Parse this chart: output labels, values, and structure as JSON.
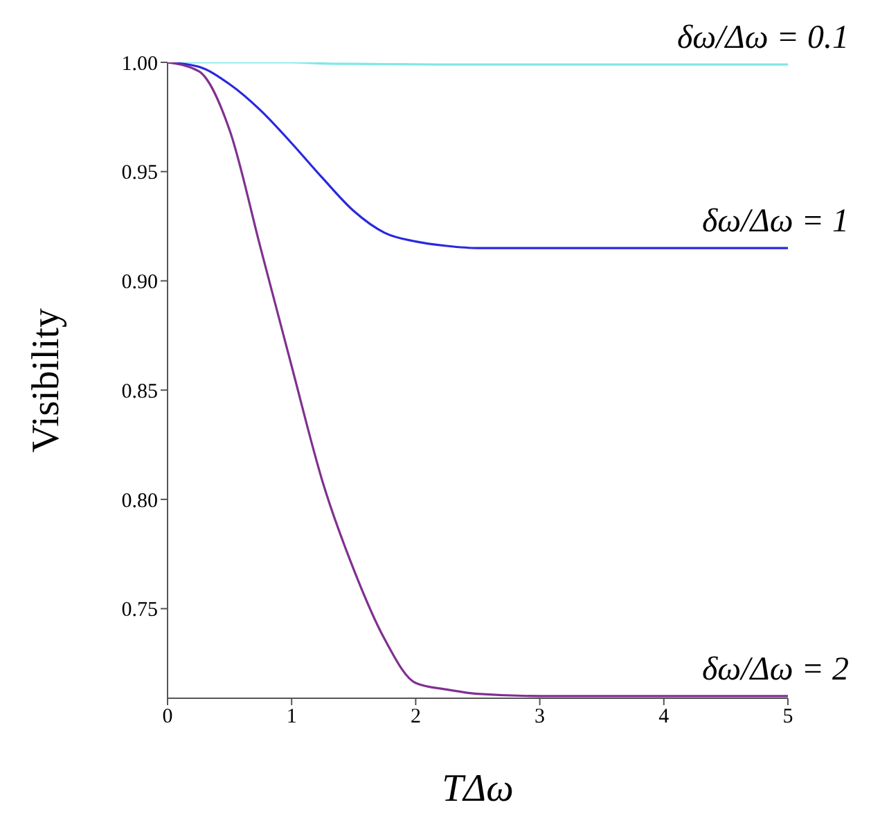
{
  "chart_data": {
    "type": "line",
    "xlabel": "TΔω",
    "ylabel": "Visibility",
    "xlim": [
      0,
      5
    ],
    "xticks": [
      0,
      1,
      2,
      3,
      4,
      5
    ],
    "ylim": [
      0.709,
      1
    ],
    "yticks": [
      {
        "value": 0.75,
        "label": "0.75"
      },
      {
        "value": 0.8,
        "label": "0.80"
      },
      {
        "value": 0.85,
        "label": "0.85"
      },
      {
        "value": 0.9,
        "label": "0.90"
      },
      {
        "value": 0.95,
        "label": "0.95"
      },
      {
        "value": 1,
        "label": "1.00"
      }
    ],
    "marker": "none",
    "line_style": "solid",
    "x": [
      0,
      0.25,
      0.5,
      0.75,
      1,
      1.25,
      1.5,
      1.75,
      2,
      2.25,
      2.5,
      3,
      4,
      5
    ],
    "series": [
      {
        "name": "δω/Δω = 0.1",
        "color": "#7fe8ea",
        "values": [
          1,
          1,
          1,
          1,
          1,
          0.9995,
          0.9993,
          0.9992,
          0.9991,
          0.999,
          0.999,
          0.999,
          0.999,
          0.999
        ]
      },
      {
        "name": "δω/Δω = 1",
        "color": "#2828e0",
        "values": [
          1,
          0.998,
          0.99,
          0.978,
          0.963,
          0.947,
          0.932,
          0.922,
          0.918,
          0.916,
          0.915,
          0.915,
          0.915,
          0.915
        ]
      },
      {
        "name": "δω/Δω = 2",
        "color": "#803090",
        "values": [
          1,
          0.996,
          0.969,
          0.915,
          0.861,
          0.808,
          0.768,
          0.736,
          0.716,
          0.713,
          0.711,
          0.71,
          0.71,
          0.71
        ]
      }
    ]
  }
}
